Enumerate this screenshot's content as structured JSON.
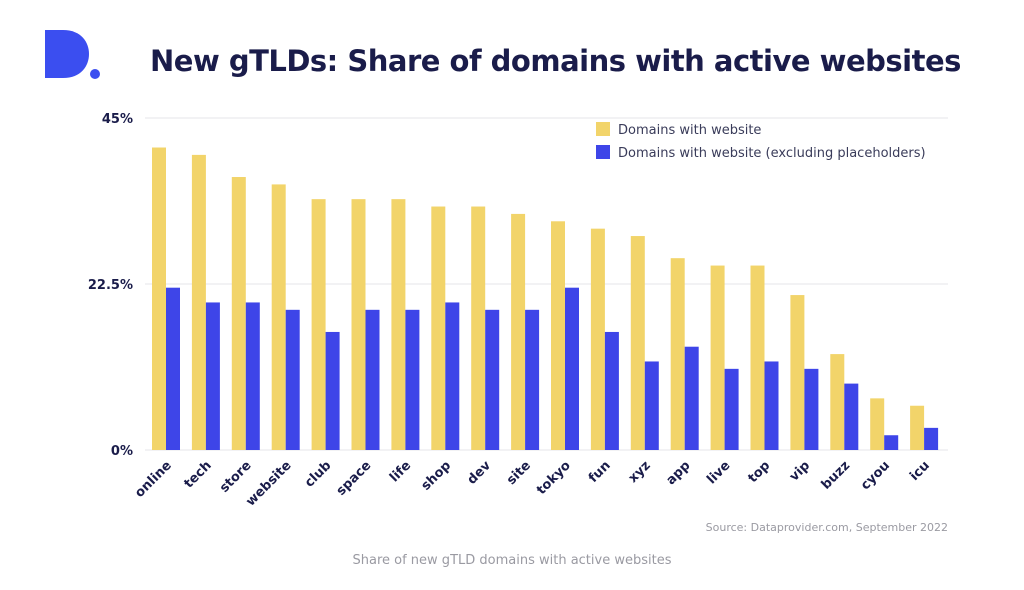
{
  "title": "New gTLDs: Share of domains with active websites",
  "caption": "Share of new gTLD domains with active websites",
  "logo": {
    "icon": "dataprovider-d-logo-icon",
    "color": "#3b4ef0"
  },
  "chart_data": {
    "type": "bar",
    "categories": [
      "online",
      "tech",
      "store",
      "website",
      "club",
      "space",
      "life",
      "shop",
      "dev",
      "site",
      "tokyo",
      "fun",
      "xyz",
      "app",
      "live",
      "top",
      "vip",
      "buzz",
      "cyou",
      "icu"
    ],
    "series": [
      {
        "name": "Domains with website",
        "color": "#f2d46a",
        "values": [
          41,
          40,
          37,
          36,
          34,
          34,
          34,
          33,
          33,
          32,
          31,
          30,
          29,
          26,
          25,
          25,
          21,
          13,
          7,
          6
        ]
      },
      {
        "name": "Domains with website (excluding placeholders)",
        "color": "#3e45e8",
        "values": [
          22,
          20,
          20,
          19,
          16,
          19,
          19,
          20,
          19,
          19,
          22,
          16,
          12,
          14,
          11,
          12,
          11,
          9,
          2,
          3
        ]
      }
    ],
    "yticks": [
      "0%",
      "22.5%",
      "45%"
    ],
    "ytick_values": [
      0,
      22.5,
      45
    ],
    "ylim": [
      0,
      45
    ],
    "grid": true,
    "legend_position": "top-right",
    "source": "Source: Dataprovider.com, September 2022"
  }
}
